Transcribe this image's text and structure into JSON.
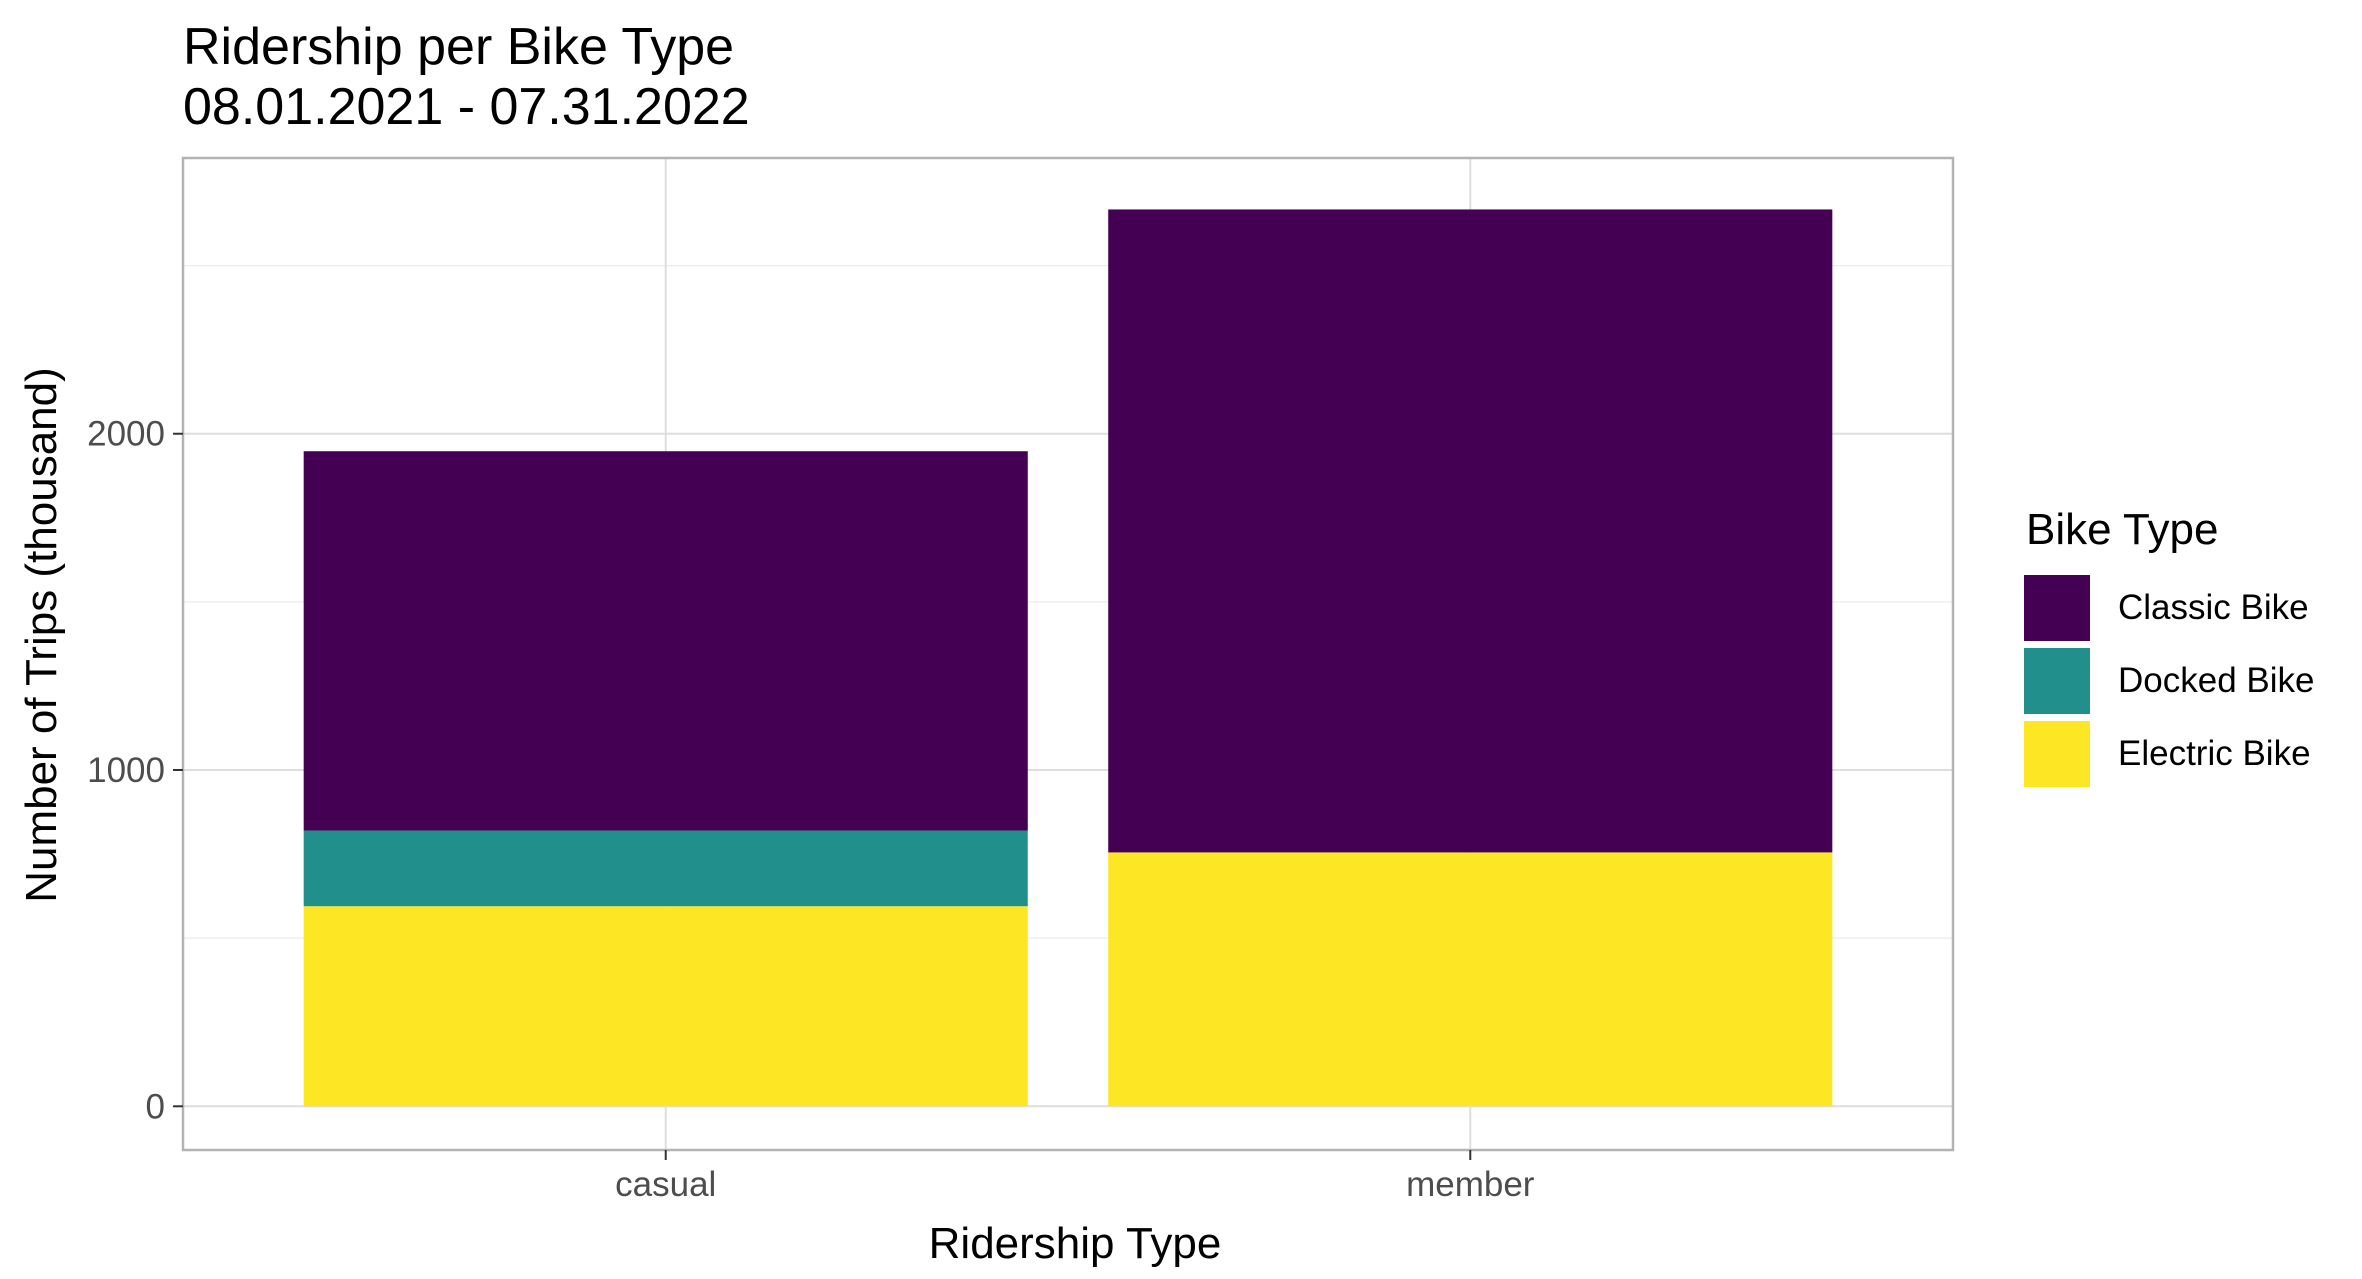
{
  "chart_data": {
    "type": "bar",
    "stacked": true,
    "title": "Ridership per Bike Type",
    "subtitle": "08.01.2021 - 07.31.2022",
    "xlabel": "Ridership Type",
    "ylabel": "Number of Trips (thousand)",
    "categories": [
      "casual",
      "member"
    ],
    "series": [
      {
        "name": "Electric Bike",
        "color": "#FDE725",
        "values": [
          595,
          755
        ]
      },
      {
        "name": "Docked Bike",
        "color": "#21908C",
        "values": [
          225,
          0
        ]
      },
      {
        "name": "Classic Bike",
        "color": "#440154",
        "values": [
          1128,
          1912
        ]
      }
    ],
    "ylim": [
      -130,
      2820
    ],
    "yticks": [
      0,
      1000,
      2000
    ],
    "ytick_labels": [
      "0",
      "1000",
      "2000"
    ],
    "grid": true,
    "legend": {
      "title": "Bike Type",
      "position": "right",
      "entries": [
        {
          "label": "Classic Bike",
          "color": "#440154"
        },
        {
          "label": "Docked Bike",
          "color": "#21908C"
        },
        {
          "label": "Electric Bike",
          "color": "#FDE725"
        }
      ]
    }
  }
}
